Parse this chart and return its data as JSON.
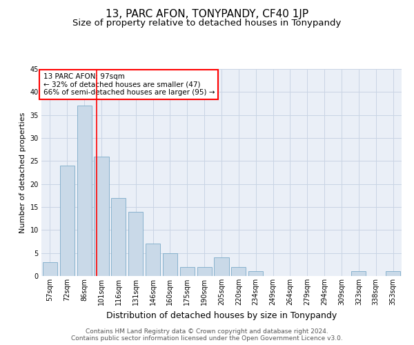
{
  "title": "13, PARC AFON, TONYPANDY, CF40 1JP",
  "subtitle": "Size of property relative to detached houses in Tonypandy",
  "xlabel": "Distribution of detached houses by size in Tonypandy",
  "ylabel": "Number of detached properties",
  "bar_labels": [
    "57sqm",
    "72sqm",
    "86sqm",
    "101sqm",
    "116sqm",
    "131sqm",
    "146sqm",
    "160sqm",
    "175sqm",
    "190sqm",
    "205sqm",
    "220sqm",
    "234sqm",
    "249sqm",
    "264sqm",
    "279sqm",
    "294sqm",
    "309sqm",
    "323sqm",
    "338sqm",
    "353sqm"
  ],
  "bar_values": [
    3,
    24,
    37,
    26,
    17,
    14,
    7,
    5,
    2,
    2,
    4,
    2,
    1,
    0,
    0,
    0,
    0,
    0,
    1,
    0,
    1
  ],
  "bar_color": "#c9d9e8",
  "bar_edge_color": "#7baac8",
  "bar_width": 0.85,
  "property_line_x": 2.72,
  "annotation_text": "13 PARC AFON: 97sqm\n← 32% of detached houses are smaller (47)\n66% of semi-detached houses are larger (95) →",
  "annotation_box_color": "white",
  "annotation_box_edge": "red",
  "red_line_color": "red",
  "ylim": [
    0,
    45
  ],
  "yticks": [
    0,
    5,
    10,
    15,
    20,
    25,
    30,
    35,
    40,
    45
  ],
  "grid_color": "#c8d4e4",
  "background_color": "#eaeff7",
  "footer_line1": "Contains HM Land Registry data © Crown copyright and database right 2024.",
  "footer_line2": "Contains public sector information licensed under the Open Government Licence v3.0.",
  "title_fontsize": 11,
  "subtitle_fontsize": 9.5,
  "xlabel_fontsize": 9,
  "ylabel_fontsize": 8,
  "tick_fontsize": 7,
  "footer_fontsize": 6.5,
  "annotation_fontsize": 7.5
}
